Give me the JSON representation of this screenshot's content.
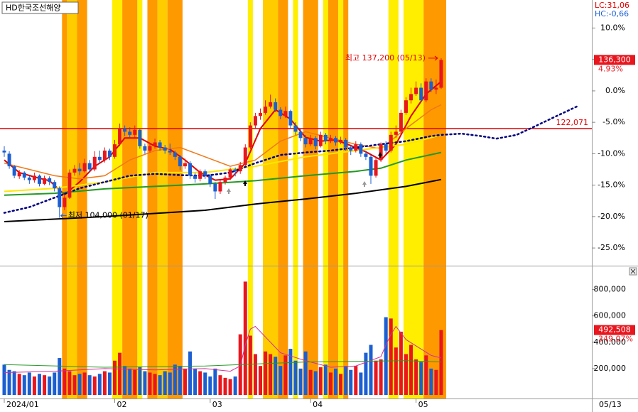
{
  "title": "HD한국조선해양",
  "lc_label": "LC:31,06",
  "hc_label": "HC:-0,66",
  "last_date_label": "05/13",
  "chart_data": [
    {
      "type": "candlestick",
      "xlim": [
        -0.85,
        117
      ],
      "xticks": [
        {
          "value": 0,
          "label": "2024/01"
        },
        {
          "value": 22,
          "label": "02"
        },
        {
          "value": 41,
          "label": "03"
        },
        {
          "value": 61,
          "label": "04"
        },
        {
          "value": 82,
          "label": "05"
        }
      ],
      "ylim": [
        -27.7,
        14.46
      ],
      "yticks": [
        {
          "value": 10,
          "label": "10.0%"
        },
        {
          "value": 5,
          "label": "5.0%"
        },
        {
          "value": 0,
          "label": "0.0%"
        },
        {
          "value": -5,
          "label": "-5.0%"
        },
        {
          "value": -10,
          "label": "-10.0%"
        },
        {
          "value": -15,
          "label": "-15.0%"
        },
        {
          "value": -20,
          "label": "-20.0%"
        },
        {
          "value": -25,
          "label": "-25.0%"
        }
      ],
      "up_color": "#e8161e",
      "down_color": "#1c5fd1",
      "candles": [
        [
          -9.5,
          -8.8,
          -10.5,
          -9.8
        ],
        [
          -10,
          -9.6,
          -12.4,
          -12
        ],
        [
          -12,
          -11.8,
          -13.9,
          -13.5
        ],
        [
          -13.6,
          -12.6,
          -14,
          -13
        ],
        [
          -13,
          -12.8,
          -14.2,
          -13.8
        ],
        [
          -13.8,
          -13.5,
          -14.8,
          -14.2
        ],
        [
          -14.2,
          -13,
          -14.6,
          -13.5
        ],
        [
          -13.5,
          -13.3,
          -15.2,
          -14.8
        ],
        [
          -14.8,
          -13.5,
          -15,
          -13.9
        ],
        [
          -13.9,
          -13.6,
          -15,
          -14.5
        ],
        [
          -14.5,
          -14.2,
          -16,
          -15.5
        ],
        [
          -15.5,
          -15.2,
          -20.2,
          -18.5
        ],
        [
          -18.5,
          -16.5,
          -19,
          -17
        ],
        [
          -17,
          -12.5,
          -17.2,
          -13
        ],
        [
          -13,
          -11.8,
          -13.5,
          -12.4
        ],
        [
          -12.4,
          -11.5,
          -13.4,
          -12.8
        ],
        [
          -12.8,
          -10.8,
          -13,
          -11.5
        ],
        [
          -11.5,
          -11,
          -13,
          -12.5
        ],
        [
          -12.5,
          -9.6,
          -12.8,
          -10.5
        ],
        [
          -10.5,
          -9.5,
          -11.6,
          -11
        ],
        [
          -11,
          -9,
          -11.4,
          -9.5
        ],
        [
          -9.5,
          -9.2,
          -11,
          -10.5
        ],
        [
          -10.5,
          -7.8,
          -10.8,
          -8.5
        ],
        [
          -8.5,
          -5.2,
          -8.8,
          -6
        ],
        [
          -6,
          -5.5,
          -7.2,
          -6.5
        ],
        [
          -6.5,
          -5.8,
          -7.5,
          -7
        ],
        [
          -7,
          -5.5,
          -7.4,
          -6.2
        ],
        [
          -6.2,
          -6,
          -9.2,
          -8.8
        ],
        [
          -8.8,
          -8.4,
          -10,
          -9.5
        ],
        [
          -9.5,
          -8.3,
          -9.8,
          -8.8
        ],
        [
          -8.8,
          -7.6,
          -9.2,
          -8.2
        ],
        [
          -8.2,
          -7.8,
          -9.5,
          -9
        ],
        [
          -9,
          -8.6,
          -10,
          -9.5
        ],
        [
          -9.5,
          -8.4,
          -10.2,
          -9.8
        ],
        [
          -9.8,
          -9.5,
          -11,
          -10.5
        ],
        [
          -10.5,
          -10.2,
          -12.6,
          -12
        ],
        [
          -12,
          -10.8,
          -12.4,
          -11.5
        ],
        [
          -11.5,
          -11.2,
          -14,
          -13.5
        ],
        [
          -13.5,
          -13,
          -14.6,
          -14
        ],
        [
          -14,
          -12.5,
          -14.4,
          -12.8
        ],
        [
          -12.8,
          -12.5,
          -14,
          -13.5
        ],
        [
          -13.5,
          -13.2,
          -15.3,
          -14.8
        ],
        [
          -14.8,
          -14.5,
          -17.2,
          -16
        ],
        [
          -16,
          -14.2,
          -16.4,
          -14.5
        ],
        [
          -14.5,
          -13.5,
          -14.9,
          -13.8
        ],
        [
          -13.8,
          -12.2,
          -14.2,
          -12.5
        ],
        [
          -12.5,
          -12.2,
          -13.6,
          -12.8
        ],
        [
          -12.8,
          -11.3,
          -13.2,
          -11.8
        ],
        [
          -11.8,
          -8.5,
          -12,
          -9
        ],
        [
          -9,
          -5,
          -9.3,
          -5.5
        ],
        [
          -5.5,
          -3.5,
          -6,
          -4
        ],
        [
          -4,
          -2.8,
          -4.6,
          -3.5
        ],
        [
          -3.5,
          -1.5,
          -3.8,
          -2.5
        ],
        [
          -2.5,
          -0.6,
          -2.8,
          -1.8
        ],
        [
          -1.8,
          -1.2,
          -3.4,
          -3
        ],
        [
          -3,
          -2.6,
          -4.5,
          -4
        ],
        [
          -4,
          -2.5,
          -4.3,
          -3.2
        ],
        [
          -3.2,
          -3,
          -6,
          -5.5
        ],
        [
          -5.5,
          -5,
          -7,
          -6.5
        ],
        [
          -6.5,
          -6,
          -8,
          -7.5
        ],
        [
          -7.5,
          -7,
          -9,
          -8.5
        ],
        [
          -8.5,
          -7,
          -8.8,
          -7.5
        ],
        [
          -7.5,
          -7.2,
          -9.3,
          -8.8
        ],
        [
          -8.8,
          -6.5,
          -9,
          -7
        ],
        [
          -7,
          -6.7,
          -8.5,
          -8
        ],
        [
          -8,
          -7,
          -8.3,
          -7.5
        ],
        [
          -7.5,
          -7.2,
          -8.7,
          -8.2
        ],
        [
          -8.2,
          -7.3,
          -8.5,
          -7.8
        ],
        [
          -7.8,
          -7.5,
          -9.5,
          -9
        ],
        [
          -9,
          -8.8,
          -10.2,
          -9.5
        ],
        [
          -9.5,
          -8,
          -9.8,
          -8.5
        ],
        [
          -8.5,
          -8.2,
          -10.5,
          -10
        ],
        [
          -10,
          -9.6,
          -11,
          -10.5
        ],
        [
          -10.5,
          -10.2,
          -14.8,
          -13.5
        ],
        [
          -13.5,
          -10.5,
          -13.8,
          -11
        ],
        [
          -11,
          -8.2,
          -11.3,
          -8.5
        ],
        [
          -8.5,
          -8,
          -10,
          -9.5
        ],
        [
          -9.5,
          -6.5,
          -9.8,
          -7
        ],
        [
          -7,
          -5.5,
          -7.5,
          -6.5
        ],
        [
          -6.5,
          -3,
          -6.8,
          -3.5
        ],
        [
          -3.5,
          -1,
          -3.8,
          -1.5
        ],
        [
          -1.5,
          0.5,
          -2,
          -0.5
        ],
        [
          -0.5,
          1.5,
          -0.8,
          0.5
        ],
        [
          0.5,
          1.2,
          -1.8,
          -1.5
        ],
        [
          -1.5,
          2,
          -1.8,
          1.5
        ],
        [
          1.5,
          2,
          -0.2,
          0.2
        ],
        [
          0.2,
          1.8,
          -0.5,
          0.5
        ],
        [
          0.5,
          5.2,
          0.3,
          4.93
        ]
      ],
      "lines": [
        {
          "color": "#e00000",
          "width": 2,
          "dash": false,
          "x": [
            0,
            3,
            6,
            9,
            12,
            15,
            18,
            21,
            24,
            27,
            30,
            33,
            36,
            39,
            42,
            45,
            48,
            51,
            54,
            57,
            60,
            63,
            66,
            69,
            72,
            75,
            78,
            81,
            84,
            87
          ],
          "values": [
            -11,
            -13,
            -13.7,
            -14.3,
            -16.5,
            -14.5,
            -12,
            -10.5,
            -7.5,
            -7.5,
            -8.8,
            -9.3,
            -11,
            -13,
            -14.2,
            -14,
            -11.5,
            -6,
            -3,
            -4.5,
            -7.4,
            -8,
            -7.8,
            -8.7,
            -9.7,
            -11,
            -8.5,
            -4,
            -0.5,
            1.5
          ]
        },
        {
          "color": "#f07818",
          "width": 1.5,
          "dash": false,
          "x": [
            0,
            5,
            10,
            15,
            20,
            25,
            30,
            35,
            40,
            45,
            50,
            55,
            60,
            65,
            70,
            75,
            80,
            85,
            87
          ],
          "values": [
            -11.5,
            -12.5,
            -13.5,
            -14,
            -13.5,
            -11,
            -9.5,
            -9,
            -10.5,
            -12,
            -11,
            -8,
            -6.5,
            -7.5,
            -8.5,
            -9.2,
            -6,
            -3,
            -2.2
          ]
        },
        {
          "color": "#ffe600",
          "width": 2,
          "dash": false,
          "x": [
            0,
            10,
            20,
            30,
            40,
            50,
            60,
            70,
            80,
            87
          ],
          "values": [
            -16,
            -15.5,
            -14.5,
            -13,
            -13,
            -12,
            -10.5,
            -9.5,
            -8.5,
            -7
          ]
        },
        {
          "color": "#229922",
          "width": 2,
          "dash": false,
          "x": [
            0,
            10,
            20,
            30,
            40,
            50,
            60,
            70,
            75,
            80,
            87
          ],
          "values": [
            -16.6,
            -16.3,
            -15.6,
            -15.2,
            -14.8,
            -14.3,
            -13.5,
            -12.8,
            -12.3,
            -11,
            -9.8
          ]
        },
        {
          "color": "#000000",
          "width": 2,
          "dash": false,
          "x": [
            0,
            20,
            40,
            50,
            60,
            70,
            80,
            87
          ],
          "values": [
            -20.8,
            -20,
            -19,
            -18,
            -17.2,
            -16.3,
            -15.2,
            -14.1
          ]
        },
        {
          "color": "#000080",
          "width": 2.5,
          "dash": true,
          "x": [
            0,
            5,
            10,
            15,
            20,
            25,
            30,
            35,
            40,
            45,
            50,
            55,
            60,
            65,
            70,
            75,
            80,
            85,
            87,
            91,
            95,
            98,
            102,
            105,
            110,
            114
          ],
          "values": [
            -19.4,
            -18.5,
            -17,
            -15.5,
            -14.5,
            -13.5,
            -13.2,
            -13.4,
            -13.5,
            -13,
            -11.5,
            -10.2,
            -9.8,
            -9.5,
            -9,
            -8.5,
            -8,
            -7.2,
            -7,
            -6.8,
            -7.2,
            -7.6,
            -7,
            -5.9,
            -4,
            -2.5
          ]
        }
      ],
      "hlines": [
        {
          "value": -6.0,
          "label": "122,071",
          "color": "#e00000"
        }
      ],
      "highlights": [
        {
          "start": 11.5,
          "end": 12.5,
          "color": "#ff9900"
        },
        {
          "start": 12.5,
          "end": 14.5,
          "color": "#ffcc00"
        },
        {
          "start": 14.5,
          "end": 16.5,
          "color": "#ff9900"
        },
        {
          "start": 21.5,
          "end": 23.5,
          "color": "#ffee00"
        },
        {
          "start": 23.5,
          "end": 26.5,
          "color": "#ff9900"
        },
        {
          "start": 26.5,
          "end": 27.5,
          "color": "#ffee00"
        },
        {
          "start": 28.5,
          "end": 30.5,
          "color": "#ff9900"
        },
        {
          "start": 30.5,
          "end": 32.5,
          "color": "#ffcc00"
        },
        {
          "start": 32.5,
          "end": 35.5,
          "color": "#ff9900"
        },
        {
          "start": 48.5,
          "end": 49.5,
          "color": "#ffee00"
        },
        {
          "start": 51.5,
          "end": 54.5,
          "color": "#ffcc00"
        },
        {
          "start": 54.5,
          "end": 56.5,
          "color": "#ff9900"
        },
        {
          "start": 57.5,
          "end": 58.5,
          "color": "#ffee00"
        },
        {
          "start": 59.5,
          "end": 62.5,
          "color": "#ff9900"
        },
        {
          "start": 63.5,
          "end": 64.5,
          "color": "#ffee00"
        },
        {
          "start": 64.5,
          "end": 66.5,
          "color": "#ff9900"
        },
        {
          "start": 66.5,
          "end": 67.5,
          "color": "#ffee00"
        },
        {
          "start": 67.5,
          "end": 68.5,
          "color": "#ff9900"
        },
        {
          "start": 76.5,
          "end": 78.5,
          "color": "#ffee00"
        },
        {
          "start": 79.5,
          "end": 83.5,
          "color": "#ffee00"
        },
        {
          "start": 83.5,
          "end": 88,
          "color": "#ff9900"
        }
      ],
      "high_label": "최고 137,200 (05/13)",
      "low_label": "최저 104,000 (01/17)",
      "last_price_label": "136,300",
      "last_change_label": "4.93%"
    },
    {
      "type": "bar",
      "ylim": [
        0,
        970000
      ],
      "yticks": [
        {
          "value": 200000,
          "label": "200,000"
        },
        {
          "value": 400000,
          "label": "400,000"
        },
        {
          "value": 600000,
          "label": "600,000"
        },
        {
          "value": 800000,
          "label": "800,000"
        }
      ],
      "values": [
        230000,
        190000,
        180000,
        160000,
        150000,
        170000,
        140000,
        160000,
        150000,
        140000,
        170000,
        280000,
        200000,
        180000,
        150000,
        160000,
        170000,
        150000,
        140000,
        160000,
        180000,
        170000,
        260000,
        320000,
        220000,
        200000,
        190000,
        210000,
        180000,
        170000,
        160000,
        150000,
        180000,
        170000,
        230000,
        220000,
        200000,
        330000,
        200000,
        180000,
        170000,
        140000,
        200000,
        150000,
        130000,
        120000,
        140000,
        460000,
        860000,
        450000,
        310000,
        220000,
        330000,
        310000,
        290000,
        220000,
        300000,
        350000,
        260000,
        200000,
        330000,
        190000,
        180000,
        210000,
        230000,
        170000,
        200000,
        160000,
        220000,
        190000,
        220000,
        170000,
        320000,
        380000,
        260000,
        270000,
        590000,
        580000,
        360000,
        480000,
        310000,
        380000,
        270000,
        250000,
        300000,
        200000,
        190000,
        492508
      ],
      "lines": [
        {
          "color": "#d0309a",
          "width": 1,
          "x": [
            0,
            10,
            20,
            30,
            40,
            45,
            47,
            48,
            49,
            50,
            55,
            60,
            65,
            70,
            75,
            76,
            77,
            78,
            80,
            85,
            87
          ],
          "values": [
            170000,
            180000,
            200000,
            190000,
            200000,
            180000,
            220000,
            380000,
            500000,
            520000,
            320000,
            260000,
            210000,
            220000,
            290000,
            380000,
            460000,
            520000,
            420000,
            300000,
            280000
          ]
        },
        {
          "color": "#2a9a2a",
          "width": 1,
          "x": [
            0,
            20,
            40,
            60,
            80,
            87
          ],
          "values": [
            230000,
            210000,
            220000,
            250000,
            260000,
            250000
          ]
        }
      ],
      "last_value_label": "492,508",
      "last_ratio_label": "349.07%"
    }
  ]
}
